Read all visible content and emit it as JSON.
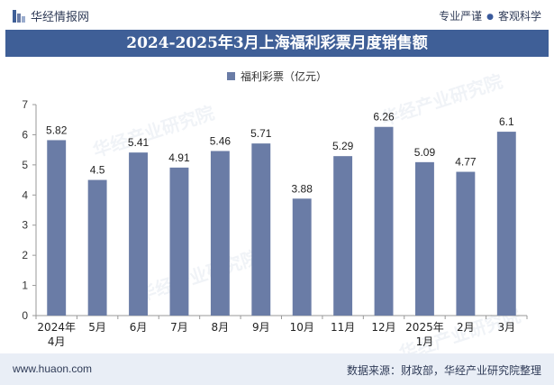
{
  "header": {
    "logo_text": "华经情报网",
    "tagline_left": "专业严谨",
    "tagline_right": "客观科学"
  },
  "chart_data": {
    "type": "bar",
    "title": "2024-2025年3月上海福利彩票月度销售额",
    "categories": [
      "2024年\n4月",
      "5月",
      "6月",
      "7月",
      "8月",
      "9月",
      "10月",
      "11月",
      "12月",
      "2025年\n1月",
      "2月",
      "3月"
    ],
    "series": [
      {
        "name": "福利彩票（亿元）",
        "values": [
          5.82,
          4.5,
          5.41,
          4.91,
          5.46,
          5.71,
          3.88,
          5.29,
          6.26,
          5.09,
          4.77,
          6.1
        ]
      }
    ],
    "ylim": [
      0,
      7
    ],
    "yticks": [
      0,
      1,
      2,
      3,
      4,
      5,
      6,
      7
    ],
    "grid": false,
    "legend": "top-center",
    "bar_color": "#6a7ca6"
  },
  "footer": {
    "url": "www.huaon.com",
    "source": "数据来源：财政部，华经产业研究院整理"
  },
  "watermark": "华经产业研究院"
}
